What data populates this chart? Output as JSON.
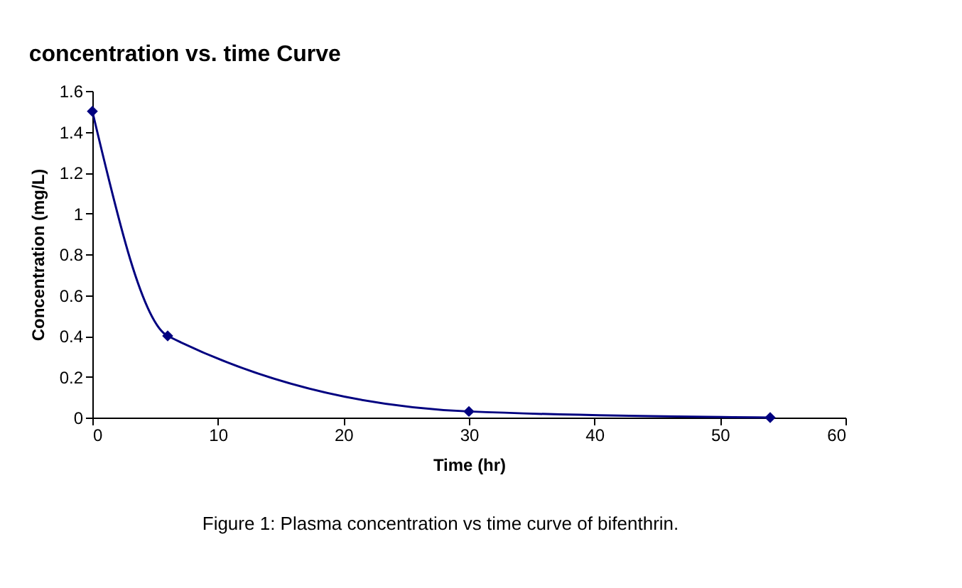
{
  "chart_data": {
    "type": "line",
    "title": "concentration vs. time Curve",
    "xlabel": "Time (hr)",
    "ylabel": "Concentration (mg/L)",
    "series": [
      {
        "color": "#000080",
        "x": [
          0,
          6,
          30,
          54
        ],
        "values": [
          1.5,
          0.4,
          0.03,
          0
        ]
      }
    ],
    "xlim": [
      0,
      60
    ],
    "xticks": [
      0,
      10,
      20,
      30,
      40,
      50,
      60
    ],
    "ylim": [
      0,
      1.6
    ],
    "yticks": [
      0,
      0.2,
      0.4,
      0.6,
      0.8,
      1,
      1.2,
      1.4,
      1.6
    ],
    "marker": "diamond",
    "grid": false,
    "annotations": [
      "Figure 1: Plasma concentration vs time curve of bifenthrin."
    ]
  }
}
